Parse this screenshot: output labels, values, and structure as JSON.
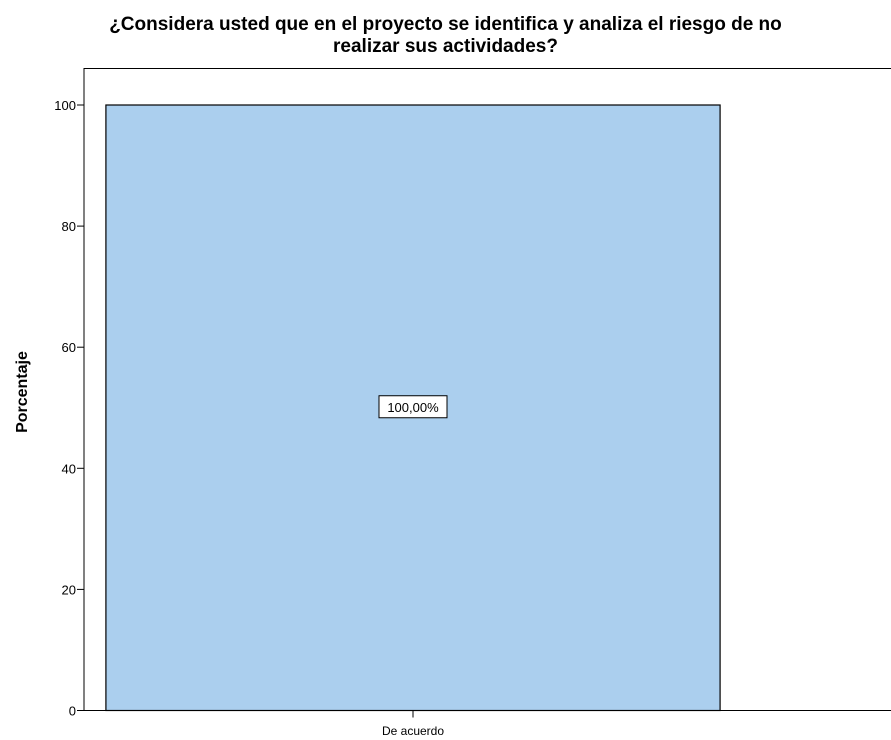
{
  "chart_data": {
    "type": "bar",
    "title_lines": [
      "¿Considera usted que en el proyecto se identifica y analiza el riesgo de no",
      "realizar sus actividades?"
    ],
    "xlabel": "",
    "ylabel": "Porcentaje",
    "categories": [
      "De acuerdo"
    ],
    "values": [
      100
    ],
    "data_labels": [
      "100,00%"
    ],
    "ylim": [
      0,
      100
    ],
    "yticks": [
      "0",
      "20",
      "40",
      "60",
      "80",
      "100"
    ],
    "bar_color": "#abcfee",
    "grid": false
  }
}
